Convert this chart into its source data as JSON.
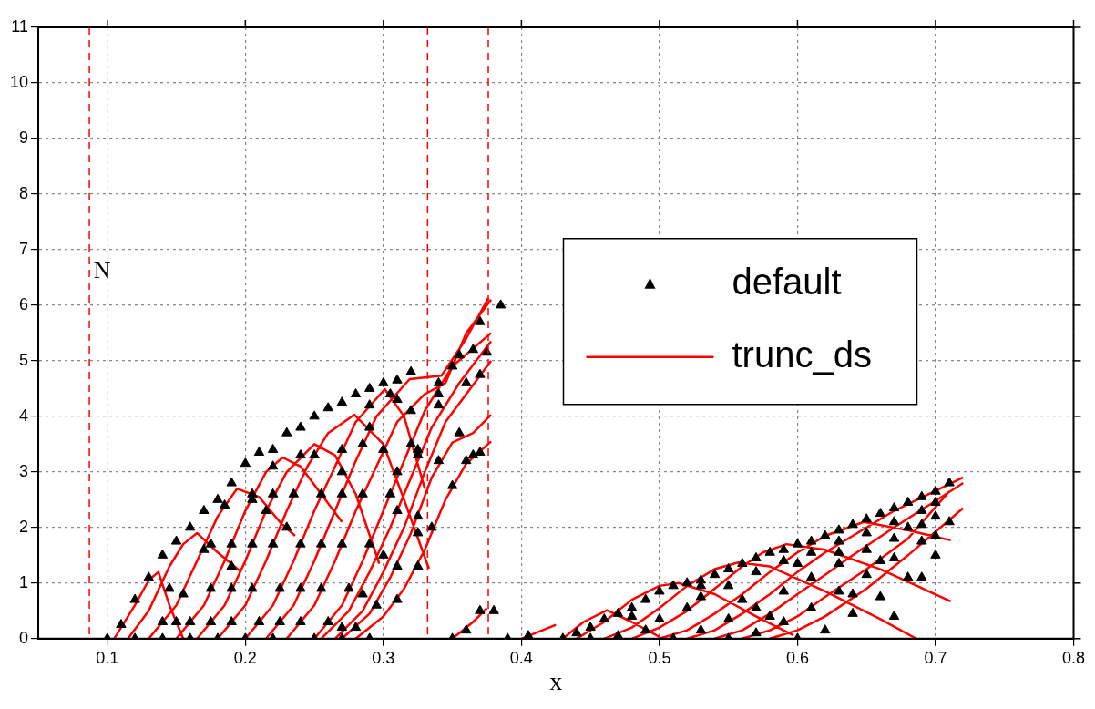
{
  "chart_data": {
    "type": "scatter",
    "xlabel": "x",
    "xlim": [
      0.05,
      0.8
    ],
    "xticks": [
      0.1,
      0.2,
      0.3,
      0.4,
      0.5,
      0.6,
      0.7,
      0.8
    ],
    "ylim": [
      0,
      11
    ],
    "yticks": [
      0,
      1,
      2,
      3,
      4,
      5,
      6,
      7,
      8,
      9,
      10,
      11
    ],
    "grid": true,
    "legend": "right",
    "ref_lines": [
      {
        "axis": "x",
        "value": 0.087,
        "color": "#ff0000",
        "line_style": "dashed"
      },
      {
        "axis": "x",
        "value": 0.332,
        "color": "#ff0000",
        "line_style": "dashed"
      },
      {
        "axis": "x",
        "value": 0.376,
        "color": "#ff0000",
        "line_style": "dashed"
      }
    ],
    "annotations": [
      {
        "text": "N",
        "x": 0.09,
        "y": 6.6
      }
    ],
    "series": [
      {
        "name": "default",
        "type": "scatter",
        "color": "#000000",
        "marker": "triangle",
        "x": [
          0.1,
          0.11,
          0.12,
          0.13,
          0.14,
          0.15,
          0.16,
          0.17,
          0.18,
          0.19,
          0.2,
          0.21,
          0.22,
          0.23,
          0.24,
          0.25,
          0.26,
          0.27,
          0.28,
          0.29,
          0.3,
          0.31,
          0.32,
          0.14,
          0.155,
          0.17,
          0.185,
          0.16,
          0.175,
          0.19,
          0.205,
          0.22,
          0.175,
          0.19,
          0.205,
          0.22,
          0.24,
          0.27,
          0.19,
          0.205,
          0.22,
          0.235,
          0.25,
          0.29,
          0.31,
          0.325,
          0.21,
          0.225,
          0.24,
          0.255,
          0.27,
          0.29,
          0.31,
          0.325,
          0.225,
          0.24,
          0.255,
          0.27,
          0.285,
          0.305,
          0.34,
          0.355,
          0.24,
          0.255,
          0.27,
          0.285,
          0.3,
          0.32,
          0.35,
          0.26,
          0.275,
          0.29,
          0.305,
          0.32,
          0.34,
          0.365,
          0.27,
          0.285,
          0.3,
          0.31,
          0.325,
          0.34,
          0.36,
          0.28,
          0.295,
          0.31,
          0.325,
          0.34,
          0.355,
          0.31,
          0.325,
          0.335,
          0.35,
          0.36,
          0.37,
          0.12,
          0.14,
          0.16,
          0.18,
          0.2,
          0.22,
          0.25,
          0.27,
          0.29,
          0.145,
          0.15,
          0.175,
          0.19,
          0.205,
          0.215,
          0.23,
          0.37,
          0.385,
          0.375,
          0.37,
          0.365,
          0.36,
          0.37,
          0.38,
          0.35,
          0.39,
          0.405,
          0.44,
          0.45,
          0.46,
          0.47,
          0.48,
          0.49,
          0.5,
          0.51,
          0.52,
          0.53,
          0.54,
          0.55,
          0.56,
          0.57,
          0.58,
          0.59,
          0.6,
          0.61,
          0.62,
          0.63,
          0.64,
          0.65,
          0.66,
          0.67,
          0.68,
          0.69,
          0.7,
          0.71,
          0.47,
          0.49,
          0.5,
          0.52,
          0.53,
          0.55,
          0.57,
          0.59,
          0.61,
          0.63,
          0.65,
          0.67,
          0.69,
          0.7,
          0.51,
          0.53,
          0.55,
          0.57,
          0.59,
          0.61,
          0.63,
          0.65,
          0.67,
          0.69,
          0.7,
          0.55,
          0.57,
          0.59,
          0.61,
          0.63,
          0.65,
          0.67,
          0.69,
          0.71,
          0.6,
          0.62,
          0.64,
          0.66,
          0.68,
          0.7,
          0.48,
          0.53,
          0.56,
          0.58,
          0.6,
          0.64,
          0.67,
          0.63,
          0.66,
          0.69,
          0.68,
          0.7,
          0.45,
          0.43
        ],
        "values": [
          0,
          0.25,
          0.7,
          1.1,
          1.5,
          1.75,
          2.0,
          2.3,
          2.5,
          2.8,
          3.15,
          3.35,
          3.4,
          3.7,
          3.8,
          4.0,
          4.15,
          4.25,
          4.4,
          4.5,
          4.6,
          4.65,
          4.8,
          0.3,
          0.8,
          1.6,
          2.4,
          0.3,
          0.9,
          1.7,
          2.5,
          3.1,
          0.3,
          0.9,
          1.7,
          2.6,
          3.3,
          3.0,
          0.3,
          0.9,
          1.7,
          2.6,
          3.3,
          3.8,
          3.0,
          1.9,
          0.3,
          0.9,
          1.7,
          2.6,
          3.4,
          4.2,
          4.3,
          3.4,
          0.3,
          0.9,
          1.7,
          2.6,
          3.5,
          4.4,
          4.6,
          5.1,
          0.3,
          0.9,
          1.7,
          2.6,
          3.4,
          4.1,
          4.9,
          0.3,
          0.9,
          1.7,
          2.6,
          3.5,
          4.4,
          5.2,
          0.2,
          0.8,
          1.5,
          2.3,
          3.3,
          4.2,
          4.6,
          0.2,
          0.6,
          1.3,
          2.2,
          3.2,
          3.7,
          0.7,
          1.3,
          2.0,
          2.75,
          3.2,
          3.35,
          0,
          0,
          0,
          0,
          0,
          0,
          0,
          0,
          0,
          0.9,
          0.3,
          1.7,
          1.3,
          2.6,
          2.3,
          2.0,
          5.7,
          6.0,
          5.15,
          4.75,
          3.3,
          0.15,
          0.5,
          0.5,
          0,
          0,
          0.05,
          0.1,
          0.2,
          0.35,
          0.45,
          0.55,
          0.7,
          0.85,
          0.95,
          1.0,
          1.05,
          1.15,
          1.25,
          1.35,
          1.45,
          1.55,
          1.6,
          1.7,
          1.75,
          1.85,
          1.95,
          2.05,
          2.15,
          2.25,
          2.35,
          2.45,
          2.55,
          2.65,
          2.8,
          0.05,
          0.15,
          0.35,
          0.55,
          0.75,
          0.95,
          1.2,
          1.4,
          1.55,
          1.75,
          1.9,
          2.1,
          2.3,
          2.45,
          0,
          0.15,
          0.35,
          0.55,
          0.85,
          1.1,
          1.35,
          1.6,
          1.8,
          2.05,
          2.2,
          0,
          0.1,
          0.3,
          0.55,
          0.85,
          1.15,
          1.45,
          1.75,
          2.1,
          0,
          0.15,
          0.45,
          0.75,
          1.1,
          1.5,
          0.4,
          0.95,
          0.7,
          0.4,
          1.35,
          0.8,
          0.4,
          1.55,
          1.4,
          1.1,
          2.0,
          1.85,
          0,
          0
        ]
      },
      {
        "name": "trunc_ds",
        "type": "line",
        "color": "#ff0000",
        "marker": "none",
        "line_style": "solid",
        "x": [
          0.105,
          0.12,
          0.13,
          0.137,
          0.145,
          0.155,
          null,
          0.115,
          0.13,
          0.145,
          0.155,
          0.165,
          0.18,
          0.197,
          null,
          0.13,
          0.15,
          0.165,
          0.18,
          0.194,
          0.21,
          0.225,
          0.236,
          null,
          0.15,
          0.17,
          0.185,
          0.2,
          0.215,
          0.227,
          0.24,
          0.255,
          0.27,
          null,
          0.165,
          0.185,
          0.2,
          0.215,
          0.23,
          0.25,
          0.265,
          0.28,
          0.297,
          null,
          0.18,
          0.2,
          0.215,
          0.23,
          0.245,
          0.26,
          0.279,
          0.3,
          0.315,
          0.333,
          null,
          0.2,
          0.22,
          0.235,
          0.25,
          0.265,
          0.28,
          0.301,
          0.315,
          0.33,
          null,
          0.215,
          0.235,
          0.25,
          0.265,
          0.28,
          0.295,
          0.319,
          0.342,
          0.36,
          0.376,
          null,
          0.23,
          0.25,
          0.265,
          0.28,
          0.295,
          0.31,
          0.33,
          0.345,
          0.36,
          0.378,
          null,
          0.25,
          0.27,
          0.285,
          0.3,
          0.315,
          0.33,
          0.35,
          0.378,
          null,
          0.255,
          0.275,
          0.29,
          0.305,
          0.32,
          0.335,
          0.355,
          0.378,
          null,
          0.265,
          0.285,
          0.3,
          0.315,
          0.33,
          0.345,
          0.36,
          0.378,
          null,
          0.27,
          0.29,
          0.305,
          0.32,
          0.335,
          0.35,
          0.365,
          0.378,
          null,
          0.28,
          0.3,
          0.315,
          0.33,
          0.345,
          0.36,
          0.378,
          null,
          0.35,
          0.365,
          0.375,
          null,
          0.4,
          0.425,
          null,
          0.43,
          0.445,
          0.462,
          0.48,
          0.5,
          null,
          0.44,
          0.46,
          0.48,
          0.5,
          0.514,
          0.54,
          0.57,
          0.597,
          null,
          0.46,
          0.48,
          0.5,
          0.52,
          0.54,
          0.557,
          0.58,
          0.62,
          0.66,
          0.686,
          null,
          0.48,
          0.5,
          0.52,
          0.54,
          0.56,
          0.575,
          0.592,
          0.62,
          0.66,
          0.711,
          null,
          0.5,
          0.52,
          0.54,
          0.56,
          0.58,
          0.6,
          0.62,
          0.648,
          0.68,
          0.711,
          null,
          0.52,
          0.54,
          0.56,
          0.58,
          0.6,
          0.62,
          0.64,
          0.67,
          0.72,
          null,
          0.54,
          0.56,
          0.58,
          0.6,
          0.62,
          0.64,
          0.67,
          0.72,
          null,
          0.56,
          0.58,
          0.6,
          0.62,
          0.65,
          0.68,
          0.71,
          null,
          0.58,
          0.6,
          0.62,
          0.65,
          0.68,
          0.72
        ],
        "values": [
          0,
          0.6,
          1.05,
          1.2,
          0.6,
          0,
          null,
          0,
          0.5,
          1.3,
          1.7,
          1.9,
          1.55,
          1.2,
          null,
          0,
          0.6,
          1.4,
          2.2,
          2.7,
          2.55,
          2.1,
          1.85,
          null,
          0,
          0.6,
          1.4,
          2.3,
          3.0,
          3.26,
          3.1,
          2.6,
          2.1,
          null,
          0,
          0.6,
          1.4,
          2.3,
          3.0,
          3.5,
          3.3,
          2.6,
          1.35,
          null,
          0,
          0.6,
          1.4,
          2.3,
          3.1,
          3.7,
          4.03,
          3.5,
          2.5,
          1.26,
          null,
          0,
          0.6,
          1.4,
          2.3,
          3.1,
          3.9,
          4.49,
          4.0,
          2.7,
          null,
          0,
          0.6,
          1.4,
          2.3,
          3.2,
          4.0,
          4.67,
          4.73,
          5.4,
          6.13,
          null,
          0,
          0.6,
          1.4,
          2.3,
          3.1,
          3.9,
          4.4,
          4.6,
          5.5,
          6.1,
          null,
          0,
          0.6,
          1.4,
          2.3,
          3.2,
          4.1,
          4.9,
          5.5,
          null,
          0,
          0.5,
          1.2,
          2.0,
          2.9,
          3.8,
          4.6,
          5.35,
          null,
          0,
          0.5,
          1.2,
          2.0,
          3.0,
          3.9,
          4.4,
          5.0,
          null,
          0,
          0.45,
          1.1,
          1.9,
          2.9,
          3.53,
          3.7,
          4.03,
          null,
          0,
          0.4,
          0.9,
          1.6,
          2.5,
          3.15,
          3.55,
          null,
          0,
          0.3,
          0.55,
          null,
          0,
          0.25,
          null,
          0,
          0.3,
          0.51,
          0.3,
          0.03,
          null,
          0,
          0.3,
          0.7,
          0.95,
          1.0,
          0.8,
          0.4,
          0.06,
          null,
          0,
          0.2,
          0.55,
          0.95,
          1.25,
          1.37,
          1.3,
          0.85,
          0.35,
          0,
          null,
          0,
          0.2,
          0.5,
          0.9,
          1.3,
          1.55,
          1.7,
          1.6,
          1.25,
          0.67,
          null,
          0,
          0.15,
          0.45,
          0.8,
          1.2,
          1.55,
          1.85,
          2.1,
          1.95,
          1.77,
          null,
          0,
          0.15,
          0.45,
          0.8,
          1.2,
          1.55,
          1.85,
          2.3,
          2.9,
          null,
          0,
          0.15,
          0.45,
          0.8,
          1.15,
          1.5,
          2.0,
          2.8,
          null,
          0,
          0.15,
          0.4,
          0.75,
          1.25,
          1.8,
          2.65,
          null,
          0,
          0.15,
          0.4,
          0.9,
          1.5,
          2.35
        ]
      }
    ]
  }
}
